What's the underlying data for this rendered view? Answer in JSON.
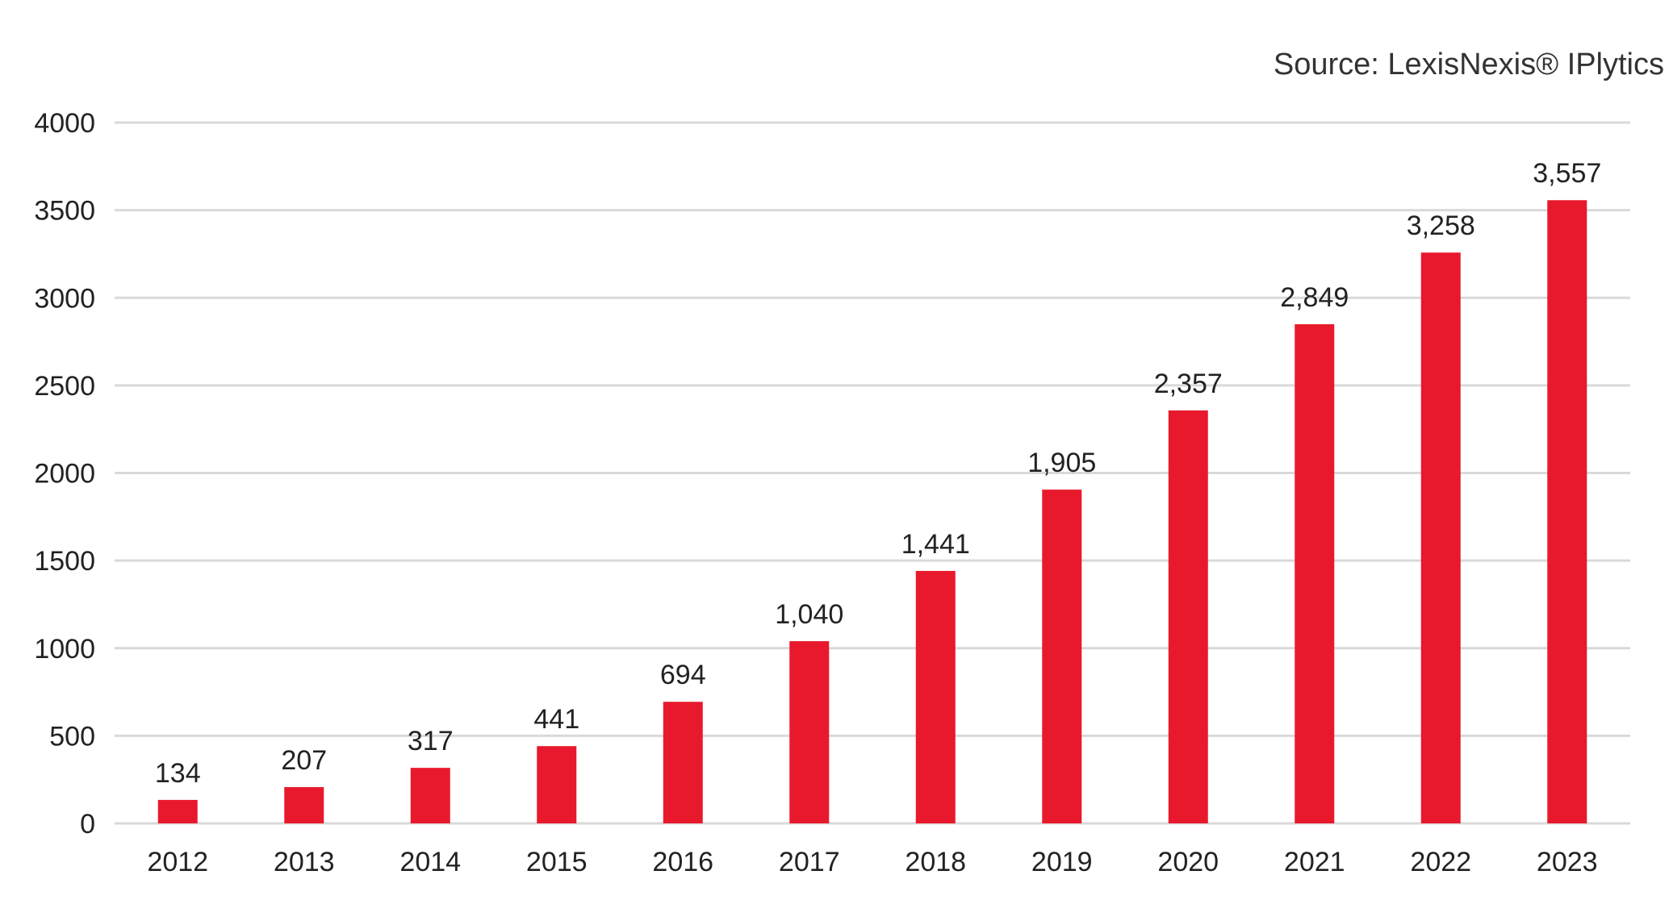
{
  "source": "Source: LexisNexis® IPlytics",
  "chart_data": {
    "type": "bar",
    "categories": [
      "2012",
      "2013",
      "2014",
      "2015",
      "2016",
      "2017",
      "2018",
      "2019",
      "2020",
      "2021",
      "2022",
      "2023"
    ],
    "values": [
      134,
      207,
      317,
      441,
      694,
      1040,
      1441,
      1905,
      2357,
      2849,
      3258,
      3557
    ],
    "data_labels": [
      "134",
      "207",
      "317",
      "441",
      "694",
      "1,040",
      "1,441",
      "1,905",
      "2,357",
      "2,849",
      "3,258",
      "3,557"
    ],
    "y_ticks": [
      "0",
      "500",
      "1000",
      "1500",
      "2000",
      "2500",
      "3000",
      "3500",
      "4000"
    ],
    "ylim": [
      0,
      4000
    ],
    "grid": true,
    "legend": "none",
    "title": "",
    "xlabel": "",
    "ylabel": "",
    "bar_color": "#e8192c",
    "grid_color": "#d9d9d9"
  }
}
